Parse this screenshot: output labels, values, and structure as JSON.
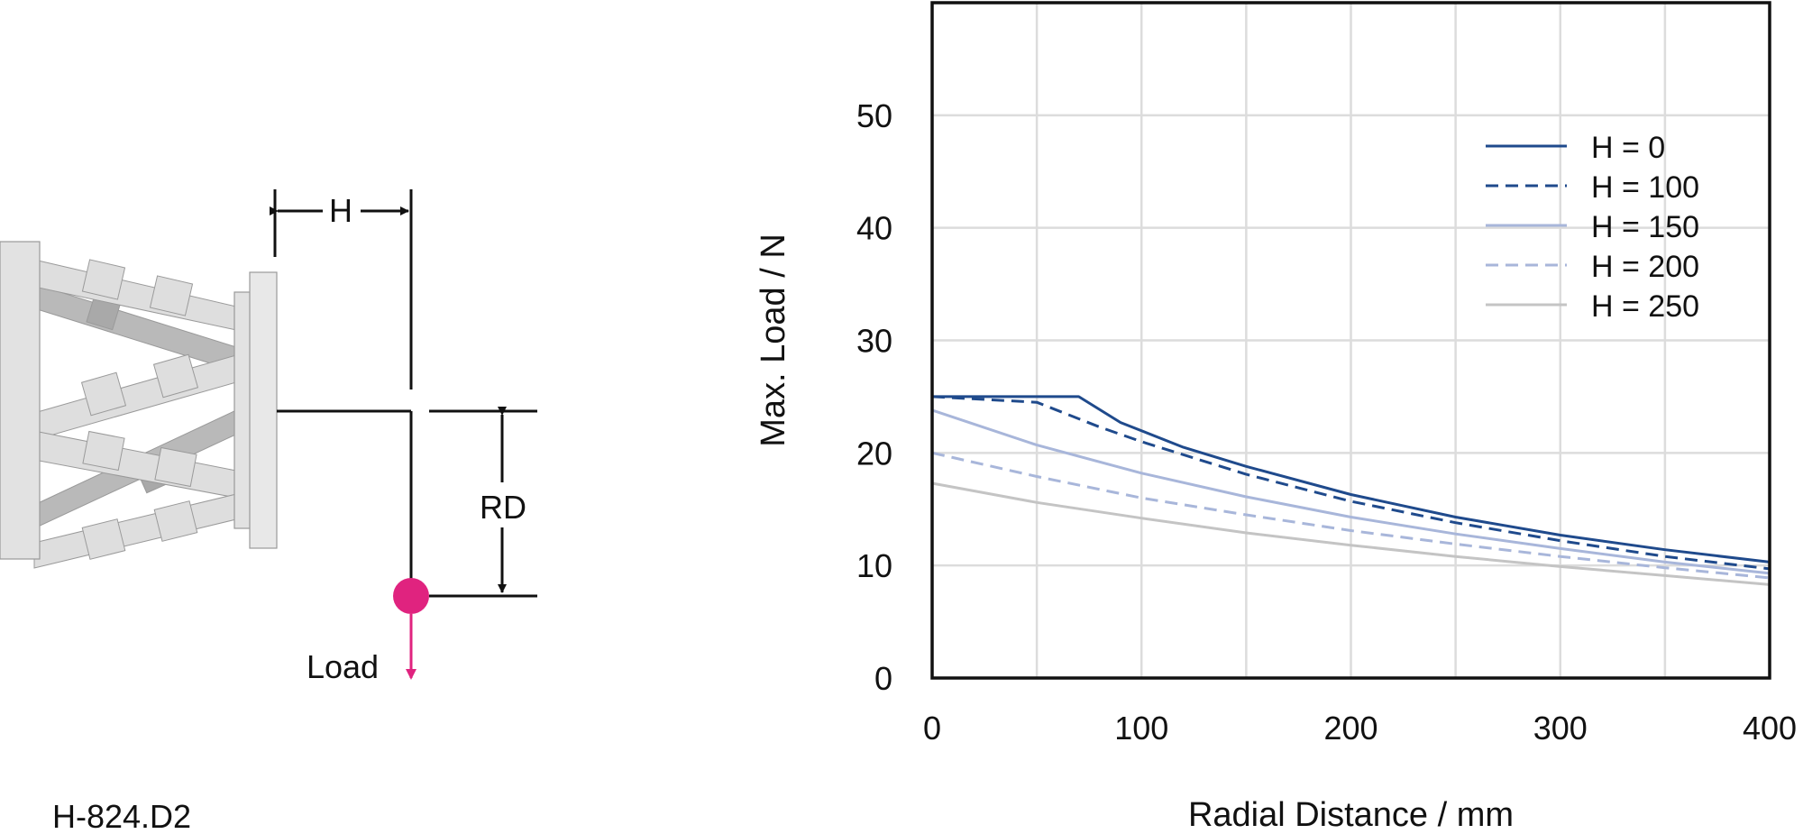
{
  "diagram": {
    "model": "H-824.D2",
    "dim_h": "H",
    "dim_rd": "RD",
    "load_label": "Load",
    "colors": {
      "load_marker": "#e0237f",
      "frame": "#dcdcdc",
      "struts": "#c9c9c9"
    }
  },
  "chart_data": {
    "type": "line",
    "xlabel": "Radial Distance / mm",
    "ylabel": "Max. Load / N",
    "xlim": [
      0,
      400
    ],
    "ylim": [
      0,
      60
    ],
    "x_ticks": [
      0,
      100,
      200,
      300,
      400
    ],
    "y_ticks": [
      0,
      10,
      20,
      30,
      40,
      50
    ],
    "grid": true,
    "legend_position": "top-right",
    "series": [
      {
        "name": "H = 0",
        "color": "#1f4a8c",
        "dash": "solid",
        "points": [
          [
            0,
            25
          ],
          [
            70,
            25
          ],
          [
            90,
            22.7
          ],
          [
            120,
            20.5
          ],
          [
            150,
            18.8
          ],
          [
            200,
            16.3
          ],
          [
            250,
            14.3
          ],
          [
            300,
            12.7
          ],
          [
            350,
            11.4
          ],
          [
            400,
            10.3
          ]
        ]
      },
      {
        "name": "H = 100",
        "color": "#1f4a8c",
        "dash": "dashed",
        "points": [
          [
            0,
            25
          ],
          [
            50,
            24.5
          ],
          [
            80,
            22.3
          ],
          [
            100,
            21
          ],
          [
            150,
            18.1
          ],
          [
            200,
            15.7
          ],
          [
            250,
            13.8
          ],
          [
            300,
            12.2
          ],
          [
            350,
            10.8
          ],
          [
            400,
            9.7
          ]
        ]
      },
      {
        "name": "H = 150",
        "color": "#a8b6da",
        "dash": "solid",
        "points": [
          [
            0,
            23.8
          ],
          [
            50,
            20.7
          ],
          [
            100,
            18.2
          ],
          [
            150,
            16.1
          ],
          [
            200,
            14.3
          ],
          [
            250,
            12.8
          ],
          [
            300,
            11.5
          ],
          [
            350,
            10.3
          ],
          [
            400,
            9.3
          ]
        ]
      },
      {
        "name": "H = 200",
        "color": "#a8b6da",
        "dash": "dashed",
        "points": [
          [
            0,
            20
          ],
          [
            50,
            17.9
          ],
          [
            100,
            16
          ],
          [
            150,
            14.5
          ],
          [
            200,
            13.1
          ],
          [
            250,
            11.9
          ],
          [
            300,
            10.8
          ],
          [
            350,
            9.8
          ],
          [
            400,
            8.9
          ]
        ]
      },
      {
        "name": "H = 250",
        "color": "#c4c4c4",
        "dash": "solid",
        "points": [
          [
            0,
            17.3
          ],
          [
            50,
            15.6
          ],
          [
            100,
            14.2
          ],
          [
            150,
            12.9
          ],
          [
            200,
            11.8
          ],
          [
            250,
            10.8
          ],
          [
            300,
            9.9
          ],
          [
            350,
            9.1
          ],
          [
            400,
            8.3
          ]
        ]
      }
    ]
  }
}
